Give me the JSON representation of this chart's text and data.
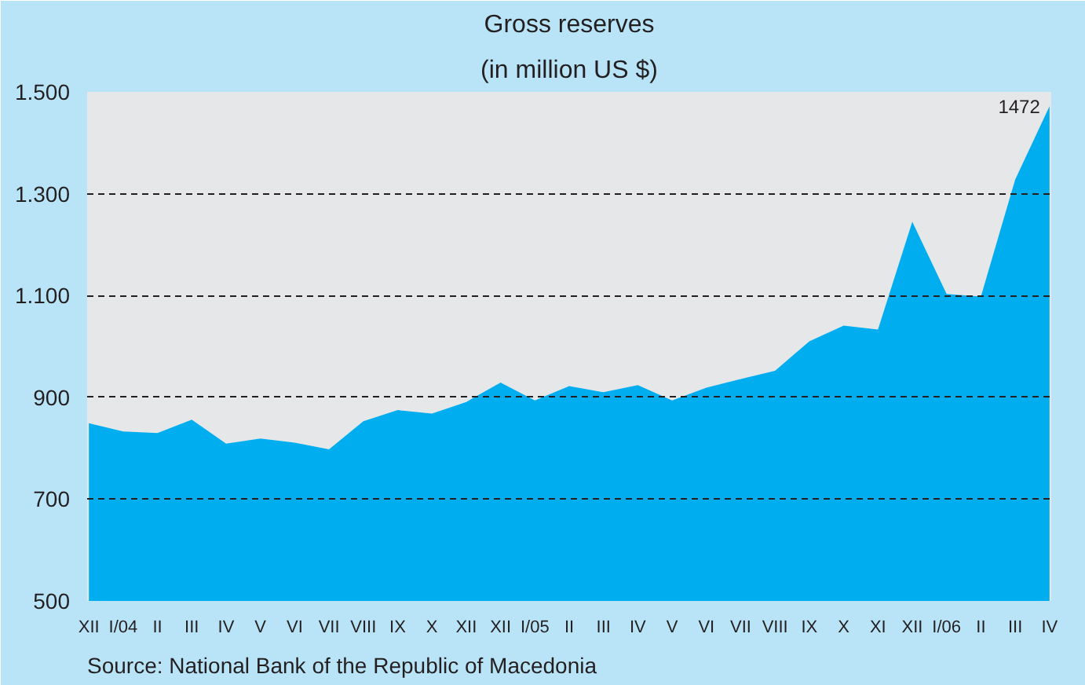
{
  "chart_data": {
    "type": "area",
    "title": "Gross reserves",
    "subtitle": "(in million US $)",
    "categories": [
      "XII",
      "I/04",
      "II",
      "III",
      "IV",
      "V",
      "VI",
      "VII",
      "VIII",
      "IX",
      "X",
      "XII",
      "XII",
      "I/05",
      "II",
      "III",
      "IV",
      "V",
      "VI",
      "VII",
      "VIII",
      "IX",
      "X",
      "XI",
      "XII",
      "I/06",
      "II",
      "III",
      "IV"
    ],
    "series": [
      {
        "color": "#00adee",
        "values": [
          849,
          833,
          830,
          856,
          809,
          819,
          811,
          798,
          853,
          875,
          868,
          891,
          929,
          894,
          922,
          910,
          924,
          894,
          919,
          936,
          952,
          1010,
          1041,
          1033,
          1245,
          1103,
          1098,
          1328,
          1472
        ],
        "value_labels": [
          null,
          null,
          null,
          null,
          null,
          null,
          null,
          null,
          null,
          null,
          null,
          null,
          null,
          null,
          null,
          null,
          null,
          null,
          null,
          null,
          null,
          null,
          null,
          null,
          null,
          null,
          null,
          null,
          "1472"
        ]
      }
    ],
    "ylim": [
      500,
      1500
    ],
    "yticks": [
      {
        "value": 500,
        "label": "500"
      },
      {
        "value": 700,
        "label": "700"
      },
      {
        "value": 900,
        "label": "900"
      },
      {
        "value": 1100,
        "label": "1.100"
      },
      {
        "value": 1300,
        "label": "1.300"
      },
      {
        "value": 1500,
        "label": "1.500"
      }
    ],
    "grid": "y",
    "annotations": [
      "Source: National Bank of the Republic of Macedonia"
    ]
  }
}
